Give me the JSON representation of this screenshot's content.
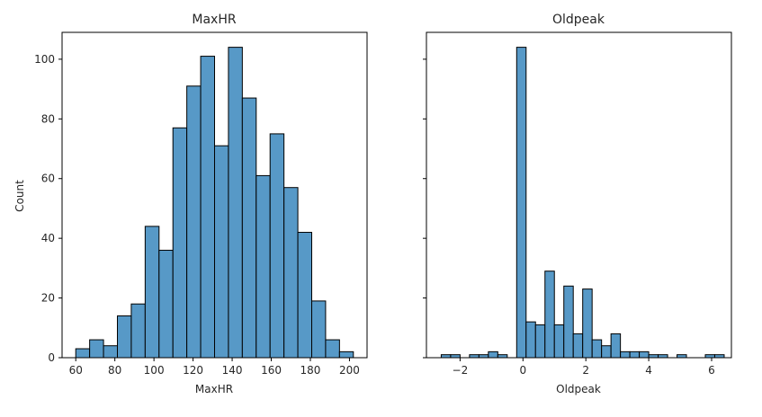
{
  "chart_data": [
    {
      "type": "bar",
      "subtype": "histogram",
      "title": "MaxHR",
      "xlabel": "MaxHR",
      "ylabel": "Count",
      "xlim": [
        53,
        209
      ],
      "ylim": [
        0,
        109
      ],
      "xticks": [
        60,
        80,
        100,
        120,
        140,
        160,
        180,
        200
      ],
      "yticks": [
        0,
        20,
        40,
        60,
        80,
        100
      ],
      "bin_start": 60,
      "bin_width": 7.1,
      "values": [
        3,
        6,
        4,
        14,
        18,
        44,
        36,
        77,
        91,
        101,
        71,
        104,
        87,
        61,
        75,
        57,
        42,
        19,
        6,
        2
      ],
      "color": "#5799c7",
      "edge_color": "#000000",
      "grid": false
    },
    {
      "type": "bar",
      "subtype": "histogram",
      "title": "Oldpeak",
      "xlabel": "Oldpeak",
      "ylabel": "",
      "xlim": [
        -3.07,
        6.63
      ],
      "ylim": [
        0,
        109
      ],
      "xticks": [
        -2,
        0,
        2,
        4,
        6
      ],
      "xtick_labels": [
        "−2",
        "0",
        "2",
        "4",
        "6"
      ],
      "yticks": [
        0,
        20,
        40,
        60,
        80,
        100
      ],
      "show_ytick_labels": false,
      "bin_start": -2.6,
      "bin_width": 0.3,
      "values": [
        1,
        1,
        0,
        1,
        1,
        2,
        1,
        0,
        104,
        12,
        11,
        29,
        11,
        24,
        8,
        23,
        6,
        4,
        8,
        2,
        2,
        2,
        1,
        1,
        0,
        1,
        0,
        0,
        1,
        1
      ],
      "color": "#5799c7",
      "edge_color": "#000000",
      "grid": false
    }
  ]
}
